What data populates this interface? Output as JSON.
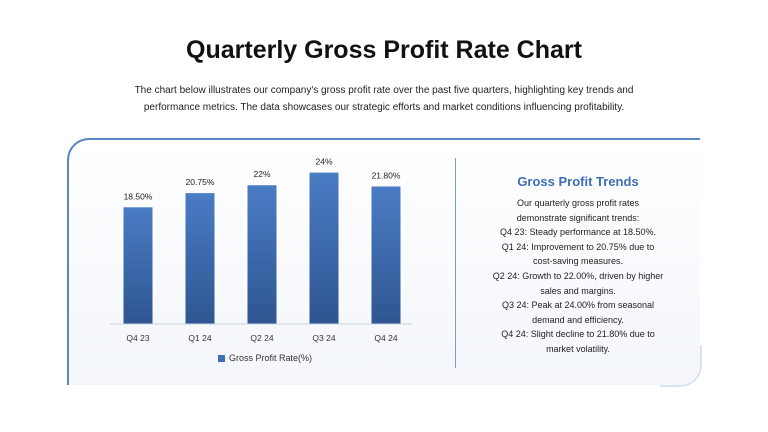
{
  "header": {
    "title": "Quarterly Gross Profit Rate Chart",
    "subtitle": "The chart below illustrates our company's gross profit rate over the past five quarters, highlighting key trends and performance metrics. The data showcases our strategic efforts and market conditions influencing profitability."
  },
  "chart_data": {
    "type": "bar",
    "categories": [
      "Q4 23",
      "Q1 24",
      "Q2 24",
      "Q3 24",
      "Q4 24"
    ],
    "series": [
      {
        "name": "Gross Profit Rate(%)",
        "values": [
          18.5,
          20.75,
          22,
          24,
          21.8
        ]
      }
    ],
    "data_labels": [
      "18.50%",
      "20.75%",
      "22%",
      "24%",
      "21.80%"
    ],
    "ylim": [
      0,
      26
    ],
    "grid": false,
    "legend": "bottom",
    "bar_color_top": "#4a7cc4",
    "bar_color_bottom": "#2e5591"
  },
  "trends": {
    "heading": "Gross Profit Trends",
    "lines": [
      "Our quarterly gross profit rates",
      "demonstrate significant trends:",
      "Q4 23: Steady performance at 18.50%.",
      "Q1 24: Improvement to 20.75% due to",
      "cost-saving measures.",
      "Q2 24: Growth to 22.00%, driven by higher",
      "sales and margins.",
      "Q3 24: Peak at 24.00% from seasonal",
      "demand and efficiency.",
      "Q4 24: Slight decline to 21.80% due to",
      "market volatility."
    ]
  }
}
